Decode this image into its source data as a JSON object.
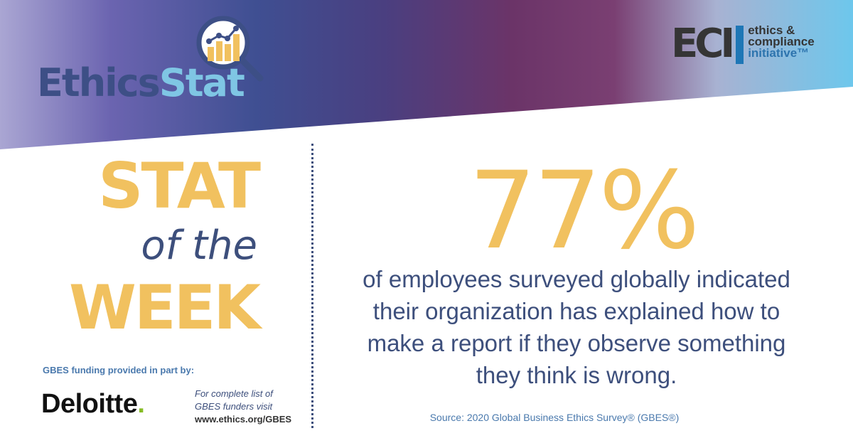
{
  "header": {
    "brand_part1": "Ethics",
    "brand_part2": "Stat",
    "brand_icon": "magnifier-chart-icon",
    "org_mark": "ECI",
    "org_words": [
      "ethics &",
      "compliance",
      "initiative™"
    ]
  },
  "left": {
    "title_line1": "STAT",
    "title_line2": "of the",
    "title_line3": "WEEK",
    "funding_label": "GBES funding provided in part by:",
    "sponsor_name": "Deloitte",
    "sponsor_dot": ".",
    "funders_line1": "For complete list of",
    "funders_line2": "GBES funders visit",
    "funders_url": "www.ethics.org/GBES"
  },
  "right": {
    "stat_value": "77%",
    "description_lines": [
      "of employees surveyed globally indicated",
      "their organization has explained how to",
      "make a report if they observe something",
      "they think is wrong."
    ],
    "source": "Source: 2020 Global Business Ethics Survey® (GBES®)"
  },
  "colors": {
    "accent_yellow": "#f1c15f",
    "navy_text": "#3d4f7c",
    "eci_blue": "#1e77b6",
    "deloitte_green": "#86bc25"
  }
}
